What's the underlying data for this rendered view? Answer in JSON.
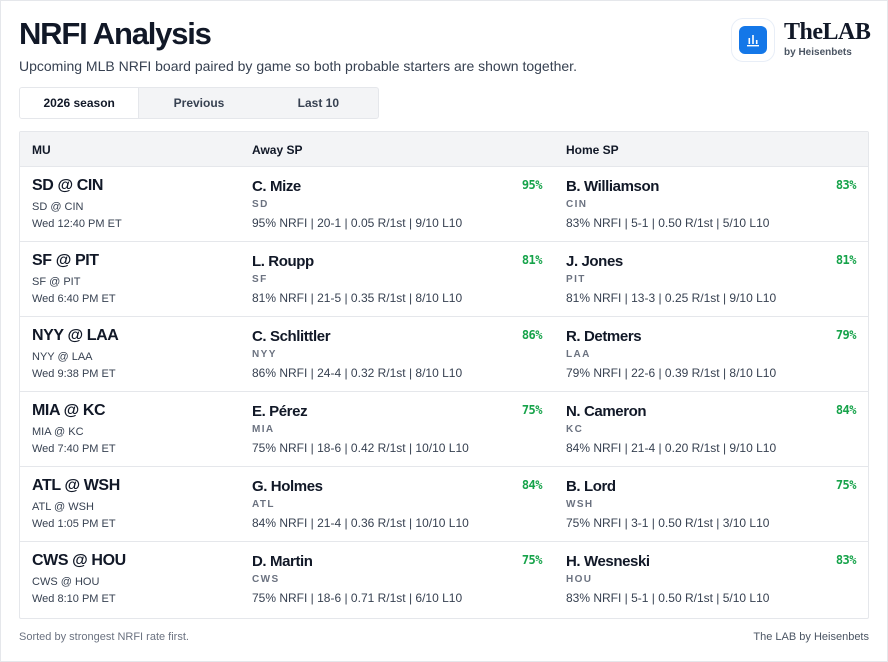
{
  "header": {
    "title": "NRFI Analysis",
    "subtitle": "Upcoming MLB NRFI board paired by game so both probable starters are shown together.",
    "brand": "TheLAB",
    "brand_sub": "by Heisenbets",
    "logo_icon": "bar-chart-icon",
    "accent": "#1477e8"
  },
  "tabs": [
    {
      "label": "2026 season",
      "active": true
    },
    {
      "label": "Previous",
      "active": false
    },
    {
      "label": "Last 10",
      "active": false
    }
  ],
  "columns": {
    "mu": "MU",
    "away": "Away SP",
    "home": "Home SP"
  },
  "games": [
    {
      "mu": "SD @ CIN",
      "mu_sub": "SD @ CIN",
      "time": "Wed 12:40 PM ET",
      "away": {
        "name": "C. Mize",
        "pct": "95%",
        "team": "SD",
        "stats": "95% NRFI | 20-1 | 0.05 R/1st | 9/10 L10"
      },
      "home": {
        "name": "B. Williamson",
        "pct": "83%",
        "team": "CIN",
        "stats": "83% NRFI | 5-1 | 0.50 R/1st | 5/10 L10"
      }
    },
    {
      "mu": "SF @ PIT",
      "mu_sub": "SF @ PIT",
      "time": "Wed 6:40 PM ET",
      "away": {
        "name": "L. Roupp",
        "pct": "81%",
        "team": "SF",
        "stats": "81% NRFI | 21-5 | 0.35 R/1st | 8/10 L10"
      },
      "home": {
        "name": "J. Jones",
        "pct": "81%",
        "team": "PIT",
        "stats": "81% NRFI | 13-3 | 0.25 R/1st | 9/10 L10"
      }
    },
    {
      "mu": "NYY @ LAA",
      "mu_sub": "NYY @ LAA",
      "time": "Wed 9:38 PM ET",
      "away": {
        "name": "C. Schlittler",
        "pct": "86%",
        "team": "NYY",
        "stats": "86% NRFI | 24-4 | 0.32 R/1st | 8/10 L10"
      },
      "home": {
        "name": "R. Detmers",
        "pct": "79%",
        "team": "LAA",
        "stats": "79% NRFI | 22-6 | 0.39 R/1st | 8/10 L10"
      }
    },
    {
      "mu": "MIA @ KC",
      "mu_sub": "MIA @ KC",
      "time": "Wed 7:40 PM ET",
      "away": {
        "name": "E. Pérez",
        "pct": "75%",
        "team": "MIA",
        "stats": "75% NRFI | 18-6 | 0.42 R/1st | 10/10 L10"
      },
      "home": {
        "name": "N. Cameron",
        "pct": "84%",
        "team": "KC",
        "stats": "84% NRFI | 21-4 | 0.20 R/1st | 9/10 L10"
      }
    },
    {
      "mu": "ATL @ WSH",
      "mu_sub": "ATL @ WSH",
      "time": "Wed 1:05 PM ET",
      "away": {
        "name": "G. Holmes",
        "pct": "84%",
        "team": "ATL",
        "stats": "84% NRFI | 21-4 | 0.36 R/1st | 10/10 L10"
      },
      "home": {
        "name": "B. Lord",
        "pct": "75%",
        "team": "WSH",
        "stats": "75% NRFI | 3-1 | 0.50 R/1st | 3/10 L10"
      }
    },
    {
      "mu": "CWS @ HOU",
      "mu_sub": "CWS @ HOU",
      "time": "Wed 8:10 PM ET",
      "away": {
        "name": "D. Martin",
        "pct": "75%",
        "team": "CWS",
        "stats": "75% NRFI | 18-6 | 0.71 R/1st | 6/10 L10"
      },
      "home": {
        "name": "H. Wesneski",
        "pct": "83%",
        "team": "HOU",
        "stats": "83% NRFI | 5-1 | 0.50 R/1st | 5/10 L10"
      }
    }
  ],
  "footer": {
    "note": "Sorted by strongest NRFI rate first.",
    "credit": "The LAB by Heisenbets"
  }
}
